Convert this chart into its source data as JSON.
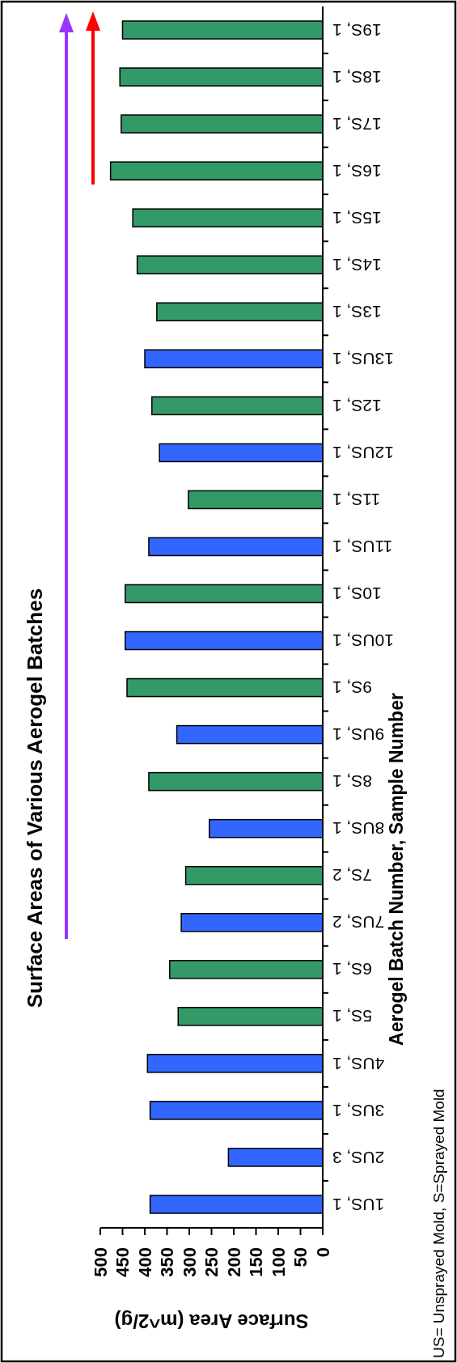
{
  "chart_data": {
    "type": "bar",
    "orientation": "horizontal",
    "title": "Surface Areas of Various Aerogel Batches",
    "ylabel": "Aerogel Batch Number, Sample Number",
    "xlabel": "Surface Area (m^2/g)",
    "annotations": [
      "US= Unsprayed Mold, S=Sprayed Mold"
    ],
    "categories": [
      "19S, 1",
      "18S, 1",
      "17S, 1",
      "16S, 1",
      "15S, 1",
      "14S, 1",
      "13S, 1",
      "13US, 1",
      "12S, 1",
      "12US, 1",
      "11S, 1",
      "11US, 1",
      "10S, 1",
      "10US, 1",
      "9S, 1",
      "9US, 1",
      "8S, 1",
      "8US, 1",
      "7S, 2",
      "7US, 2",
      "6S, 1",
      "5S, 1",
      "4US, 1",
      "3US, 1",
      "2US, 3",
      "1US, 1"
    ],
    "values": [
      450,
      456,
      453,
      477,
      427,
      417,
      373,
      400,
      384,
      367,
      302,
      391,
      444,
      444,
      440,
      328,
      391,
      255,
      308,
      318,
      344,
      325,
      394,
      388,
      212,
      388
    ],
    "colors": [
      "#339966",
      "#339966",
      "#339966",
      "#339966",
      "#339966",
      "#339966",
      "#339966",
      "#3366ff",
      "#339966",
      "#3366ff",
      "#339966",
      "#3366ff",
      "#339966",
      "#3366ff",
      "#339966",
      "#3366ff",
      "#339966",
      "#3366ff",
      "#339966",
      "#3366ff",
      "#339966",
      "#339966",
      "#3366ff",
      "#3366ff",
      "#3366ff",
      "#3366ff"
    ],
    "xlim": [
      500,
      0
    ],
    "xticks": [
      0,
      50,
      100,
      150,
      200,
      250,
      300,
      350,
      400,
      450,
      500
    ]
  }
}
